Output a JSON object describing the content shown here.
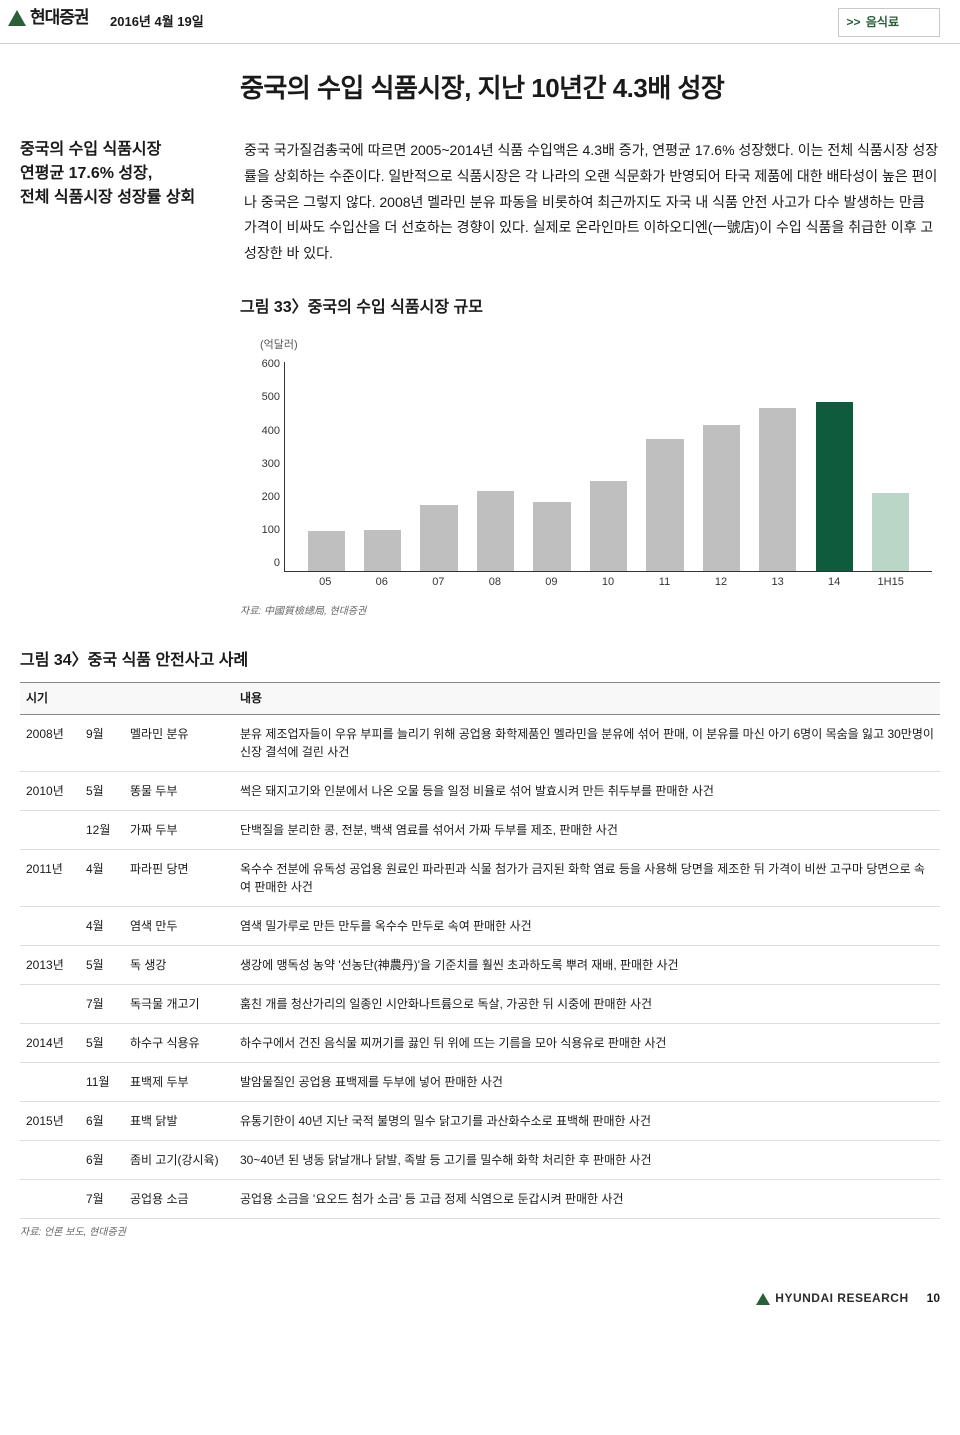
{
  "header": {
    "brand": "현대증권",
    "date": "2016년 4월 19일",
    "breadcrumb": "음식료"
  },
  "title": "중국의 수입 식품시장, 지난 10년간 4.3배 성장",
  "side_summary": [
    "중국의 수입 식품시장",
    "연평균 17.6% 성장,",
    "전체 식품시장 성장률 상회"
  ],
  "body_text": "중국 국가질검총국에 따르면 2005~2014년 식품 수입액은 4.3배 증가, 연평균 17.6% 성장했다. 이는 전체 식품시장 성장률을 상회하는 수준이다. 일반적으로 식품시장은 각 나라의 오랜 식문화가 반영되어 타국 제품에 대한 배타성이 높은 편이나 중국은 그렇지 않다. 2008년 멜라민 분유 파동을 비롯하여 최근까지도 자국 내 식품 안전 사고가 다수 발생하는 만큼 가격이 비싸도 수입산을 더 선호하는 경향이 있다. 실제로 온라인마트 이하오디엔(一號店)이 수입 식품을 취급한 이후 고성장한 바 있다.",
  "fig33": {
    "title": "그림 33〉중국의 수입 식품시장 규모",
    "unit": "(억달러)",
    "type": "bar",
    "categories": [
      "05",
      "06",
      "07",
      "08",
      "09",
      "10",
      "11",
      "12",
      "13",
      "14",
      "1H15"
    ],
    "ymax": 600,
    "ytick_labels": [
      "600",
      "500",
      "400",
      "300",
      "200",
      "100",
      "0"
    ],
    "values": [
      115,
      120,
      190,
      230,
      200,
      260,
      380,
      420,
      470,
      485,
      225
    ],
    "bar_colors": [
      "#bfbfbf",
      "#bfbfbf",
      "#bfbfbf",
      "#bfbfbf",
      "#bfbfbf",
      "#bfbfbf",
      "#bfbfbf",
      "#bfbfbf",
      "#bfbfbf",
      "#0e5b3e",
      "#b9d6c7"
    ],
    "axis_color": "#333333",
    "source": "자료: 中國質檢總局, 현대증권"
  },
  "fig34": {
    "title": "그림 34〉중국 식품 안전사고 사례",
    "columns": [
      "시기",
      "",
      "",
      "내용"
    ],
    "rows": [
      {
        "group": true,
        "year": "2008년",
        "month": "9월",
        "item": "멜라민 분유",
        "desc": "분유 제조업자들이 우유 부피를 늘리기 위해 공업용 화학제품인 멜라민을 분유에 섞어 판매, 이 분유를 마신 아기 6명이 목숨을 잃고 30만명이 신장 결석에 걸린 사건"
      },
      {
        "group": true,
        "year": "2010년",
        "month": "5월",
        "item": "똥물 두부",
        "desc": "썩은 돼지고기와 인분에서 나온 오물 등을 일정 비율로 섞어 발효시켜 만든 취두부를 판매한 사건"
      },
      {
        "group": false,
        "year": "",
        "month": "12월",
        "item": "가짜 두부",
        "desc": "단백질을 분리한 콩, 전분, 백색 염료를 섞어서 가짜 두부를 제조, 판매한 사건"
      },
      {
        "group": true,
        "year": "2011년",
        "month": "4월",
        "item": "파라핀 당면",
        "desc": "옥수수 전분에 유독성 공업용 원료인 파라핀과 식물 첨가가 금지된 화학 염료 등을 사용해 당면을 제조한 뒤 가격이 비싼 고구마 당면으로 속여 판매한 사건"
      },
      {
        "group": false,
        "year": "",
        "month": "4월",
        "item": "염색 만두",
        "desc": "염색 밀가루로 만든 만두를 옥수수 만두로 속여 판매한 사건"
      },
      {
        "group": true,
        "year": "2013년",
        "month": "5월",
        "item": "독 생강",
        "desc": "생강에 맹독성 농약 '선농단(神農丹)'을 기준치를 훨씬 초과하도록 뿌려 재배, 판매한 사건"
      },
      {
        "group": false,
        "year": "",
        "month": "7월",
        "item": "독극물 개고기",
        "desc": "훔친 개를 청산가리의 일종인 시안화나트륨으로 독살, 가공한 뒤 시중에 판매한 사건"
      },
      {
        "group": true,
        "year": "2014년",
        "month": "5월",
        "item": "하수구 식용유",
        "desc": "하수구에서 건진 음식물 찌꺼기를 끓인 뒤 위에 뜨는 기름을 모아 식용유로 판매한 사건"
      },
      {
        "group": false,
        "year": "",
        "month": "11월",
        "item": "표백제 두부",
        "desc": "발암물질인 공업용 표백제를 두부에 넣어 판매한 사건"
      },
      {
        "group": true,
        "year": "2015년",
        "month": "6월",
        "item": "표백 닭발",
        "desc": "유통기한이 40년 지난 국적 불명의 밀수 닭고기를 과산화수소로 표백해 판매한 사건"
      },
      {
        "group": false,
        "year": "",
        "month": "6월",
        "item": "좀비 고기(강시육)",
        "desc": "30~40년 된 냉동 닭날개나 닭발, 족발 등 고기를 밀수해 화학 처리한 후 판매한 사건"
      },
      {
        "group": false,
        "year": "",
        "month": "7월",
        "item": "공업용 소금",
        "desc": "공업용 소금을 '요오드 첨가 소금' 등 고급 정제 식염으로 둔갑시켜 판매한 사건"
      }
    ],
    "source": "자료: 언론 보도, 현대증권"
  },
  "footer": {
    "brand": "HYUNDAI RESEARCH",
    "page": "10"
  }
}
